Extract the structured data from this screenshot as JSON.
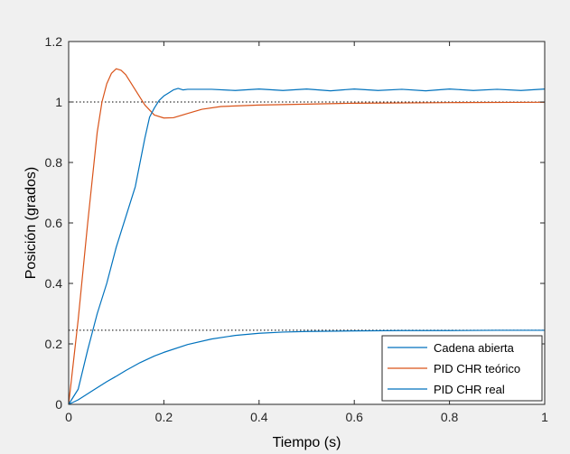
{
  "chart_data": {
    "type": "line",
    "xlabel": "Tiempo (s)",
    "ylabel": "Posición (grados)",
    "xlim": [
      0,
      1
    ],
    "ylim": [
      0,
      1.2
    ],
    "xticks": [
      0,
      0.2,
      0.4,
      0.6,
      0.8,
      1
    ],
    "yticks": [
      0,
      0.2,
      0.4,
      0.6,
      0.8,
      1,
      1.2
    ],
    "xtick_labels": [
      "0",
      "0.2",
      "0.4",
      "0.6",
      "0.8",
      "1"
    ],
    "ytick_labels": [
      "0",
      "0.2",
      "0.4",
      "0.6",
      "0.8",
      "1",
      "1.2"
    ],
    "grid": false,
    "legend_position": "bottom-right",
    "reference_lines": [
      {
        "y": 1.0,
        "style": "dotted",
        "color": "#000000"
      },
      {
        "y": 0.245,
        "style": "dotted",
        "color": "#000000"
      }
    ],
    "series": [
      {
        "name": "Cadena abierta",
        "color": "#0072BD",
        "x": [
          0,
          0.02,
          0.05,
          0.08,
          0.1,
          0.12,
          0.15,
          0.18,
          0.2,
          0.25,
          0.3,
          0.35,
          0.4,
          0.45,
          0.5,
          0.6,
          0.7,
          0.8,
          0.9,
          1.0
        ],
        "y": [
          0,
          0.015,
          0.045,
          0.075,
          0.093,
          0.112,
          0.138,
          0.16,
          0.172,
          0.198,
          0.216,
          0.228,
          0.235,
          0.239,
          0.241,
          0.243,
          0.244,
          0.244,
          0.245,
          0.245
        ]
      },
      {
        "name": "PID CHR teórico",
        "color": "#D95319",
        "x": [
          0,
          0.02,
          0.04,
          0.06,
          0.07,
          0.08,
          0.09,
          0.1,
          0.11,
          0.12,
          0.14,
          0.16,
          0.18,
          0.2,
          0.22,
          0.25,
          0.28,
          0.32,
          0.4,
          0.5,
          0.6,
          0.8,
          1.0
        ],
        "y": [
          0,
          0.28,
          0.6,
          0.9,
          1.0,
          1.06,
          1.095,
          1.11,
          1.105,
          1.09,
          1.04,
          0.99,
          0.957,
          0.947,
          0.948,
          0.962,
          0.976,
          0.985,
          0.99,
          0.993,
          0.996,
          0.998,
          0.999
        ]
      },
      {
        "name": "PID CHR real",
        "color": "#0072BD",
        "x": [
          0,
          0.02,
          0.04,
          0.05,
          0.06,
          0.08,
          0.1,
          0.12,
          0.14,
          0.15,
          0.16,
          0.17,
          0.18,
          0.19,
          0.2,
          0.21,
          0.22,
          0.23,
          0.24,
          0.25,
          0.3,
          0.35,
          0.4,
          0.45,
          0.5,
          0.55,
          0.6,
          0.65,
          0.7,
          0.75,
          0.8,
          0.85,
          0.9,
          0.95,
          1.0
        ],
        "y": [
          0,
          0.05,
          0.18,
          0.24,
          0.3,
          0.4,
          0.52,
          0.62,
          0.72,
          0.8,
          0.88,
          0.95,
          0.98,
          1.005,
          1.02,
          1.03,
          1.04,
          1.045,
          1.04,
          1.042,
          1.042,
          1.038,
          1.043,
          1.038,
          1.043,
          1.037,
          1.043,
          1.038,
          1.042,
          1.037,
          1.043,
          1.038,
          1.042,
          1.038,
          1.043
        ]
      }
    ]
  }
}
